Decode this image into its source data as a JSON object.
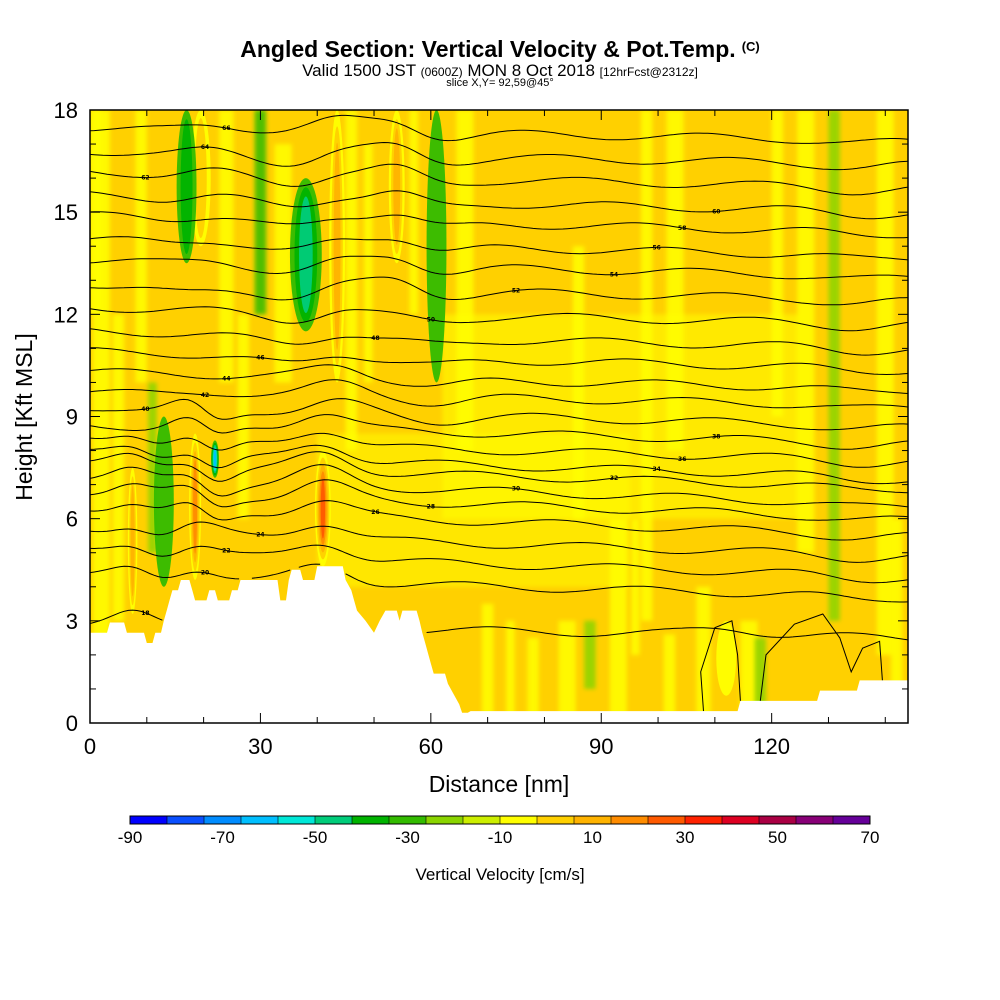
{
  "title": {
    "main": "Angled Section: Vertical Velocity & Pot.Temp.",
    "main_unit": "(C)",
    "valid_prefix": "Valid 1500 JST",
    "valid_utc": "(0600Z)",
    "valid_date": "MON 8 Oct 2018",
    "forecast": "[12hrFcst@2312z]",
    "slice": "slice X,Y= 92,59@45°"
  },
  "chart_data": {
    "type": "heatmap",
    "xlabel": "Distance [nm]",
    "ylabel": "Height [Kft MSL]",
    "xlim": [
      0,
      144
    ],
    "ylim": [
      0,
      18
    ],
    "x_ticks": [
      0,
      30,
      60,
      90,
      120
    ],
    "y_ticks": [
      0,
      3,
      6,
      9,
      12,
      15,
      18
    ],
    "colorbar": {
      "label": "Vertical Velocity [cm/s]",
      "tick_labels": [
        "-90",
        "-70",
        "-50",
        "-30",
        "-10",
        "10",
        "30",
        "50",
        "70"
      ],
      "bounds": [
        -90,
        70
      ],
      "step": 10,
      "colors": [
        "#0000ff",
        "#0a4fff",
        "#008cff",
        "#00bfff",
        "#00e8d8",
        "#00cc7a",
        "#00b300",
        "#33bb00",
        "#8ad400",
        "#ccee00",
        "#ffff00",
        "#ffd000",
        "#ffb300",
        "#ff8c00",
        "#ff5a00",
        "#ff2200",
        "#dd0022",
        "#aa0044",
        "#880077",
        "#660099"
      ]
    },
    "velocity_features": [
      {
        "x": 7.5,
        "y_bottom": 3.2,
        "y_top": 7.5,
        "width": 1.2,
        "value": 35
      },
      {
        "x": 18.5,
        "y_bottom": 4.2,
        "y_top": 8.5,
        "width": 1.5,
        "value": 45
      },
      {
        "x": 19.5,
        "y_bottom": 14.0,
        "y_top": 18,
        "width": 2.5,
        "value": 30
      },
      {
        "x": 22,
        "y_bottom": 7.2,
        "y_top": 8.3,
        "width": 1.0,
        "value": -55
      },
      {
        "x": 17,
        "y_bottom": 13.5,
        "y_top": 18,
        "width": 2.5,
        "value": -25
      },
      {
        "x": 38,
        "y_bottom": 11.5,
        "y_top": 16,
        "width": 4.0,
        "value": -35
      },
      {
        "x": 41,
        "y_bottom": 4.6,
        "y_top": 8,
        "width": 2.0,
        "value": 55
      },
      {
        "x": 43.5,
        "y_bottom": 10,
        "y_top": 18,
        "width": 2.0,
        "value": 35
      },
      {
        "x": 54,
        "y_bottom": 13.5,
        "y_top": 18,
        "width": 2.0,
        "value": 40
      },
      {
        "x": 61,
        "y_bottom": 10,
        "y_top": 18,
        "width": 2.5,
        "value": -20
      },
      {
        "x": 112,
        "y_bottom": 0.8,
        "y_top": 3.0,
        "width": 2.5,
        "value": 22
      },
      {
        "x": 13,
        "y_bottom": 4,
        "y_top": 9,
        "width": 2.5,
        "value": -15
      },
      {
        "x": 135,
        "y_bottom": 4,
        "y_top": 18,
        "width": 2.5,
        "value": -12
      }
    ],
    "terrain": [
      [
        0,
        2.65
      ],
      [
        3,
        2.65
      ],
      [
        3.5,
        2.95
      ],
      [
        6,
        2.95
      ],
      [
        6.5,
        2.65
      ],
      [
        9.5,
        2.65
      ],
      [
        10,
        2.35
      ],
      [
        11,
        2.35
      ],
      [
        11.5,
        2.65
      ],
      [
        12.5,
        2.65
      ],
      [
        13,
        3.0
      ],
      [
        13.5,
        3.3
      ],
      [
        14,
        3.6
      ],
      [
        14.5,
        3.9
      ],
      [
        15.5,
        3.9
      ],
      [
        16,
        4.2
      ],
      [
        17.5,
        4.2
      ],
      [
        18,
        3.9
      ],
      [
        18.5,
        3.6
      ],
      [
        20.5,
        3.6
      ],
      [
        21,
        3.9
      ],
      [
        22,
        3.9
      ],
      [
        22.5,
        3.6
      ],
      [
        24.5,
        3.6
      ],
      [
        25,
        3.9
      ],
      [
        26,
        3.9
      ],
      [
        26.5,
        4.2
      ],
      [
        33,
        4.2
      ],
      [
        33.5,
        3.6
      ],
      [
        34.5,
        3.6
      ],
      [
        35,
        4.2
      ],
      [
        35.5,
        4.5
      ],
      [
        37,
        4.5
      ],
      [
        37.5,
        4.2
      ],
      [
        39.5,
        4.2
      ],
      [
        40,
        4.6
      ],
      [
        44.5,
        4.6
      ],
      [
        45,
        4.2
      ],
      [
        46,
        3.9
      ],
      [
        46.5,
        3.6
      ],
      [
        47,
        3.3
      ],
      [
        48.5,
        3.0
      ],
      [
        50,
        2.65
      ],
      [
        51,
        3.0
      ],
      [
        52,
        3.3
      ],
      [
        54,
        3.3
      ],
      [
        54.5,
        3.0
      ],
      [
        55,
        3.3
      ],
      [
        57.5,
        3.3
      ],
      [
        58,
        3.0
      ],
      [
        58.5,
        2.65
      ],
      [
        59,
        2.35
      ],
      [
        59.5,
        2.05
      ],
      [
        60,
        1.75
      ],
      [
        60.5,
        1.45
      ],
      [
        62.5,
        1.45
      ],
      [
        63,
        1.15
      ],
      [
        64,
        0.85
      ],
      [
        65,
        0.55
      ],
      [
        65.5,
        0.3
      ],
      [
        66.5,
        0.3
      ],
      [
        67,
        0.35
      ],
      [
        85,
        0.35
      ],
      [
        114,
        0.35
      ],
      [
        114.5,
        0.65
      ],
      [
        128,
        0.65
      ],
      [
        128.5,
        0.95
      ],
      [
        135,
        0.95
      ],
      [
        135.5,
        1.25
      ],
      [
        144,
        1.25
      ]
    ],
    "theta_contours": [
      {
        "y_left": 2.9,
        "amp": 0.4,
        "label": "18"
      },
      {
        "y_left": 4.3,
        "amp": 0.6,
        "label": "20"
      },
      {
        "y_left": 5.0,
        "amp": 0.7,
        "label": "22"
      },
      {
        "y_left": 5.6,
        "amp": 0.7,
        "label": "24"
      },
      {
        "y_left": 6.3,
        "amp": 0.8,
        "label": "26"
      },
      {
        "y_left": 6.8,
        "amp": 0.8,
        "label": "28"
      },
      {
        "y_left": 7.2,
        "amp": 0.8,
        "label": "30"
      },
      {
        "y_left": 7.6,
        "amp": 0.7,
        "label": "32"
      },
      {
        "y_left": 7.9,
        "amp": 0.7,
        "label": "34"
      },
      {
        "y_left": 8.3,
        "amp": 0.6,
        "label": "36"
      },
      {
        "y_left": 8.8,
        "amp": 0.6,
        "label": "38"
      },
      {
        "y_left": 9.3,
        "amp": 0.6,
        "label": "40"
      },
      {
        "y_left": 9.8,
        "amp": 0.5,
        "label": "42"
      },
      {
        "y_left": 10.3,
        "amp": 0.5,
        "label": "44"
      },
      {
        "y_left": 10.9,
        "amp": 0.5,
        "label": "46"
      },
      {
        "y_left": 11.5,
        "amp": 0.5,
        "label": "48"
      },
      {
        "y_left": 12.2,
        "amp": 0.5,
        "label": "50"
      },
      {
        "y_left": 12.9,
        "amp": 0.5,
        "label": "52"
      },
      {
        "y_left": 13.6,
        "amp": 0.5,
        "label": "54"
      },
      {
        "y_left": 14.2,
        "amp": 0.5,
        "label": "56"
      },
      {
        "y_left": 14.9,
        "amp": 0.5,
        "label": "58"
      },
      {
        "y_left": 15.5,
        "amp": 0.5,
        "label": "60"
      },
      {
        "y_left": 16.2,
        "amp": 0.5,
        "label": "62"
      },
      {
        "y_left": 16.8,
        "amp": 0.4,
        "label": "64"
      },
      {
        "y_left": 17.5,
        "amp": 0.4,
        "label": "66"
      }
    ],
    "low_contours": [
      {
        "points": [
          [
            108,
            0.35
          ],
          [
            107.5,
            1.5
          ],
          [
            110,
            2.8
          ],
          [
            113,
            3.0
          ],
          [
            114,
            2.0
          ],
          [
            114.5,
            0.65
          ]
        ]
      },
      {
        "points": [
          [
            118,
            0.65
          ],
          [
            119,
            2.0
          ],
          [
            124,
            2.9
          ],
          [
            129,
            3.2
          ],
          [
            132,
            2.5
          ],
          [
            134,
            1.5
          ],
          [
            136,
            2.2
          ],
          [
            139,
            2.4
          ],
          [
            139.5,
            1.25
          ]
        ]
      }
    ]
  }
}
